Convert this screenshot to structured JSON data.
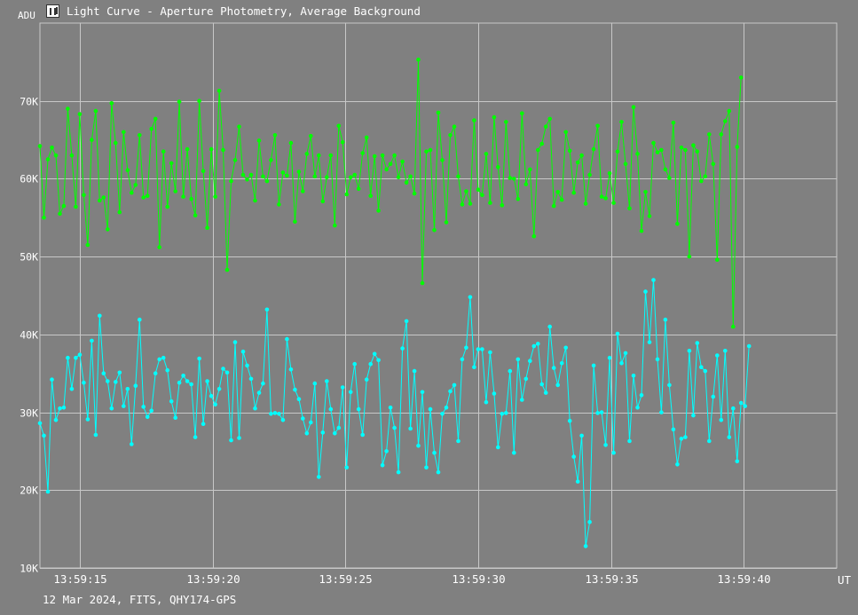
{
  "window": {
    "title": "Light Curve - Aperture Photometry, Average Background",
    "icon": "chart-app-icon"
  },
  "footer": "12 Mar 2024, FITS, QHY174-GPS",
  "colors": {
    "background": "#808080",
    "grid": "#c8c8c8",
    "series_green": "#00ff00",
    "series_cyan": "#00ffff",
    "text": "#ffffff"
  },
  "chart_data": {
    "type": "line",
    "title": "Light Curve - Aperture Photometry, Average Background",
    "ylabel": "ADU",
    "xlabel": "UT",
    "ylim": [
      10000,
      80000
    ],
    "xlim": [
      "13:59:13.5",
      "13:59:43.5"
    ],
    "yticks": [
      {
        "value": 10000,
        "label": "10K"
      },
      {
        "value": 20000,
        "label": "20K"
      },
      {
        "value": 30000,
        "label": "30K"
      },
      {
        "value": 40000,
        "label": "40K"
      },
      {
        "value": 50000,
        "label": "50K"
      },
      {
        "value": 60000,
        "label": "60K"
      },
      {
        "value": 70000,
        "label": "70K"
      }
    ],
    "xticks": [
      "13:59:15",
      "13:59:20",
      "13:59:25",
      "13:59:30",
      "13:59:35",
      "13:59:40"
    ],
    "x_start": "13:59:13.5",
    "x_step_s": 0.15,
    "grid": true,
    "legend": "none",
    "series": [
      {
        "color": "#00ff00",
        "values": [
          64200,
          55000,
          62500,
          64000,
          63000,
          55500,
          56500,
          69000,
          63000,
          56400,
          68300,
          57900,
          51500,
          65000,
          68700,
          57200,
          57600,
          53500,
          69700,
          64600,
          55700,
          66000,
          61100,
          58200,
          59200,
          65600,
          57600,
          57800,
          66400,
          67700,
          51200,
          63500,
          56400,
          62000,
          58400,
          69900,
          57700,
          63800,
          57400,
          55300,
          70000,
          61000,
          53700,
          63800,
          57700,
          71300,
          63700,
          48300,
          59700,
          62400,
          66700,
          60500,
          59900,
          60500,
          57200,
          64900,
          60300,
          59700,
          62400,
          65600,
          56700,
          60800,
          60400,
          64600,
          54500,
          60900,
          58400,
          63200,
          65500,
          60300,
          63000,
          57100,
          60200,
          63000,
          54000,
          66800,
          64700,
          58000,
          60200,
          60500,
          58700,
          63300,
          65300,
          57800,
          62900,
          55900,
          63000,
          61200,
          61900,
          63000,
          60200,
          62200,
          59500,
          60300,
          58100,
          75300,
          46600,
          63500,
          63700,
          53400,
          68500,
          62400,
          54400,
          65600,
          66700,
          60300,
          56700,
          58400,
          56800,
          67500,
          58600,
          57900,
          63200,
          56900,
          67900,
          61500,
          56600,
          67300,
          60100,
          60000,
          57400,
          68400,
          59300,
          61200,
          52600,
          63700,
          64500,
          66700,
          67700,
          56500,
          58300,
          57300,
          66000,
          63600,
          58200,
          62100,
          63000,
          56800,
          60500,
          63800,
          66800,
          57700,
          57500,
          60700,
          56900,
          63500,
          67300,
          61900,
          56200,
          69200,
          63200,
          53300,
          58300,
          55200,
          64600,
          63400,
          63700,
          61200,
          60100,
          67200,
          54200,
          64000,
          63700,
          50000,
          64300,
          63500,
          59700,
          60300,
          65700,
          61900,
          49600,
          65700,
          67400,
          68700,
          41000,
          64100,
          73000
        ]
      },
      {
        "color": "#00ffff",
        "values": [
          28600,
          27000,
          19800,
          34200,
          29000,
          30500,
          30600,
          37000,
          33000,
          37000,
          37400,
          33800,
          29100,
          39200,
          27100,
          42400,
          35000,
          34000,
          30500,
          33900,
          35100,
          30800,
          33000,
          25900,
          33400,
          41900,
          30700,
          29400,
          30200,
          35000,
          36800,
          37000,
          35400,
          31400,
          29300,
          33800,
          34700,
          34000,
          33600,
          26800,
          36900,
          28500,
          34000,
          32100,
          31000,
          33000,
          35600,
          35100,
          26400,
          39000,
          26700,
          37800,
          36000,
          34300,
          30500,
          32500,
          33700,
          43200,
          29800,
          29900,
          29800,
          29000,
          39400,
          35500,
          32900,
          31700,
          29200,
          27300,
          28700,
          33700,
          21700,
          27400,
          34000,
          30400,
          27300,
          28000,
          33200,
          22900,
          32600,
          36200,
          30400,
          27100,
          34200,
          36200,
          37500,
          36700,
          23200,
          25000,
          30600,
          28000,
          22300,
          38200,
          41700,
          27900,
          35300,
          25700,
          32600,
          22900,
          30400,
          24800,
          22300,
          29800,
          30600,
          32700,
          33500,
          26300,
          36800,
          38300,
          44800,
          35800,
          38100,
          38100,
          31300,
          37700,
          32400,
          25500,
          29800,
          29900,
          35300,
          24800,
          36800,
          31600,
          34300,
          36600,
          38500,
          38800,
          33600,
          32500,
          41000,
          35700,
          33500,
          36300,
          38300,
          28900,
          24300,
          21100,
          27000,
          12800,
          15900,
          36000,
          29900,
          30000,
          25800,
          37000,
          24800,
          40100,
          36300,
          37600,
          26300,
          34700,
          30600,
          32200,
          45500,
          39000,
          47000,
          36800,
          30000,
          41900,
          33500,
          27800,
          23300,
          26600,
          26800,
          37900,
          29600,
          38900,
          35800,
          35300,
          26300,
          32000,
          37300,
          29000,
          37900,
          26800,
          30500,
          23700,
          31200,
          30800,
          38500
        ]
      }
    ]
  }
}
